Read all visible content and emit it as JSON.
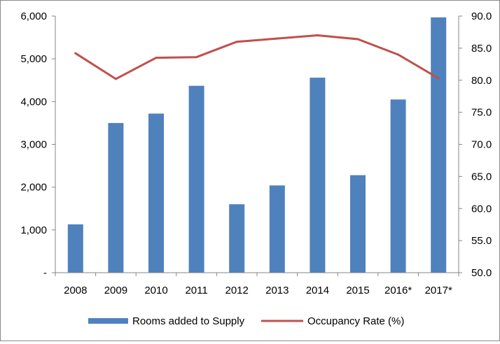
{
  "chart_data": {
    "type": "bar",
    "title": "",
    "categories": [
      "2008",
      "2009",
      "2010",
      "2011",
      "2012",
      "2013",
      "2014",
      "2015",
      "2016*",
      "2017*"
    ],
    "series": [
      {
        "name": "Rooms added to Supply",
        "type": "bar",
        "axis": "left",
        "color": "#4F81BD",
        "values": [
          1130,
          3500,
          3720,
          4370,
          1600,
          2040,
          4560,
          2280,
          4050,
          5970
        ]
      },
      {
        "name": "Occupancy Rate (%)",
        "type": "line",
        "axis": "right",
        "color": "#C0504D",
        "values": [
          84.2,
          80.2,
          83.5,
          83.6,
          86.0,
          86.5,
          87.0,
          86.4,
          84.0,
          80.3
        ]
      }
    ],
    "y_left": {
      "lim": [
        0,
        6000
      ],
      "ticks": [
        0,
        1000,
        2000,
        3000,
        4000,
        5000,
        6000
      ],
      "tick_labels": [
        "-",
        "1,000",
        "2,000",
        "3,000",
        "4,000",
        "5,000",
        "6,000"
      ]
    },
    "y_right": {
      "lim": [
        50,
        90
      ],
      "ticks": [
        50,
        55,
        60,
        65,
        70,
        75,
        80,
        85,
        90
      ],
      "tick_labels": [
        "50.0",
        "55.0",
        "60.0",
        "65.0",
        "70.0",
        "75.0",
        "80.0",
        "85.0",
        "90.0"
      ]
    },
    "grid": false,
    "legend_position": "bottom"
  }
}
